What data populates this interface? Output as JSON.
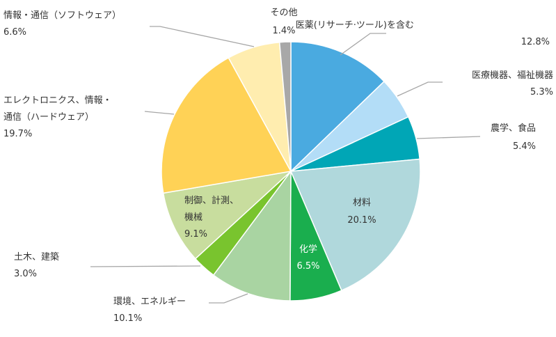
{
  "chart_data": {
    "type": "pie",
    "title": "",
    "start_angle_deg": 0,
    "direction": "clockwise",
    "slices": [
      {
        "label": "医薬(リサーチ·ツール)を含む",
        "value": 12.8,
        "value_text": "12.8%",
        "color": "#4AAAE0"
      },
      {
        "label": "医療機器、福祉機器",
        "value": 5.3,
        "value_text": "5.3%",
        "color": "#B3DDF7"
      },
      {
        "label": "農学、食品",
        "value": 5.4,
        "value_text": "5.4%",
        "color": "#00A6B6"
      },
      {
        "label": "材料",
        "value": 20.1,
        "value_text": "20.1%",
        "color": "#B0D8DC"
      },
      {
        "label": "化学",
        "value": 6.5,
        "value_text": "6.5%",
        "color": "#1AAE4E"
      },
      {
        "label": "環境、エネルギー",
        "value": 10.1,
        "value_text": "10.1%",
        "color": "#A9D4A2"
      },
      {
        "label": "土木、建築",
        "value": 3.0,
        "value_text": "3.0%",
        "color": "#79C42E"
      },
      {
        "label": "制御、計測、機械",
        "value": 9.1,
        "value_text": "9.1%",
        "color": "#C8DD9E"
      },
      {
        "label": "エレクトロニクス、情報・通信（ハードウェア）",
        "value": 19.7,
        "value_text": "19.7%",
        "color": "#FFD256"
      },
      {
        "label": "情報・通信（ソフトウェア）",
        "value": 6.6,
        "value_text": "6.6%",
        "color": "#FFEDAF"
      },
      {
        "label": "その他",
        "value": 1.4,
        "value_text": "1.4%",
        "color": "#A8A8A8"
      }
    ]
  }
}
